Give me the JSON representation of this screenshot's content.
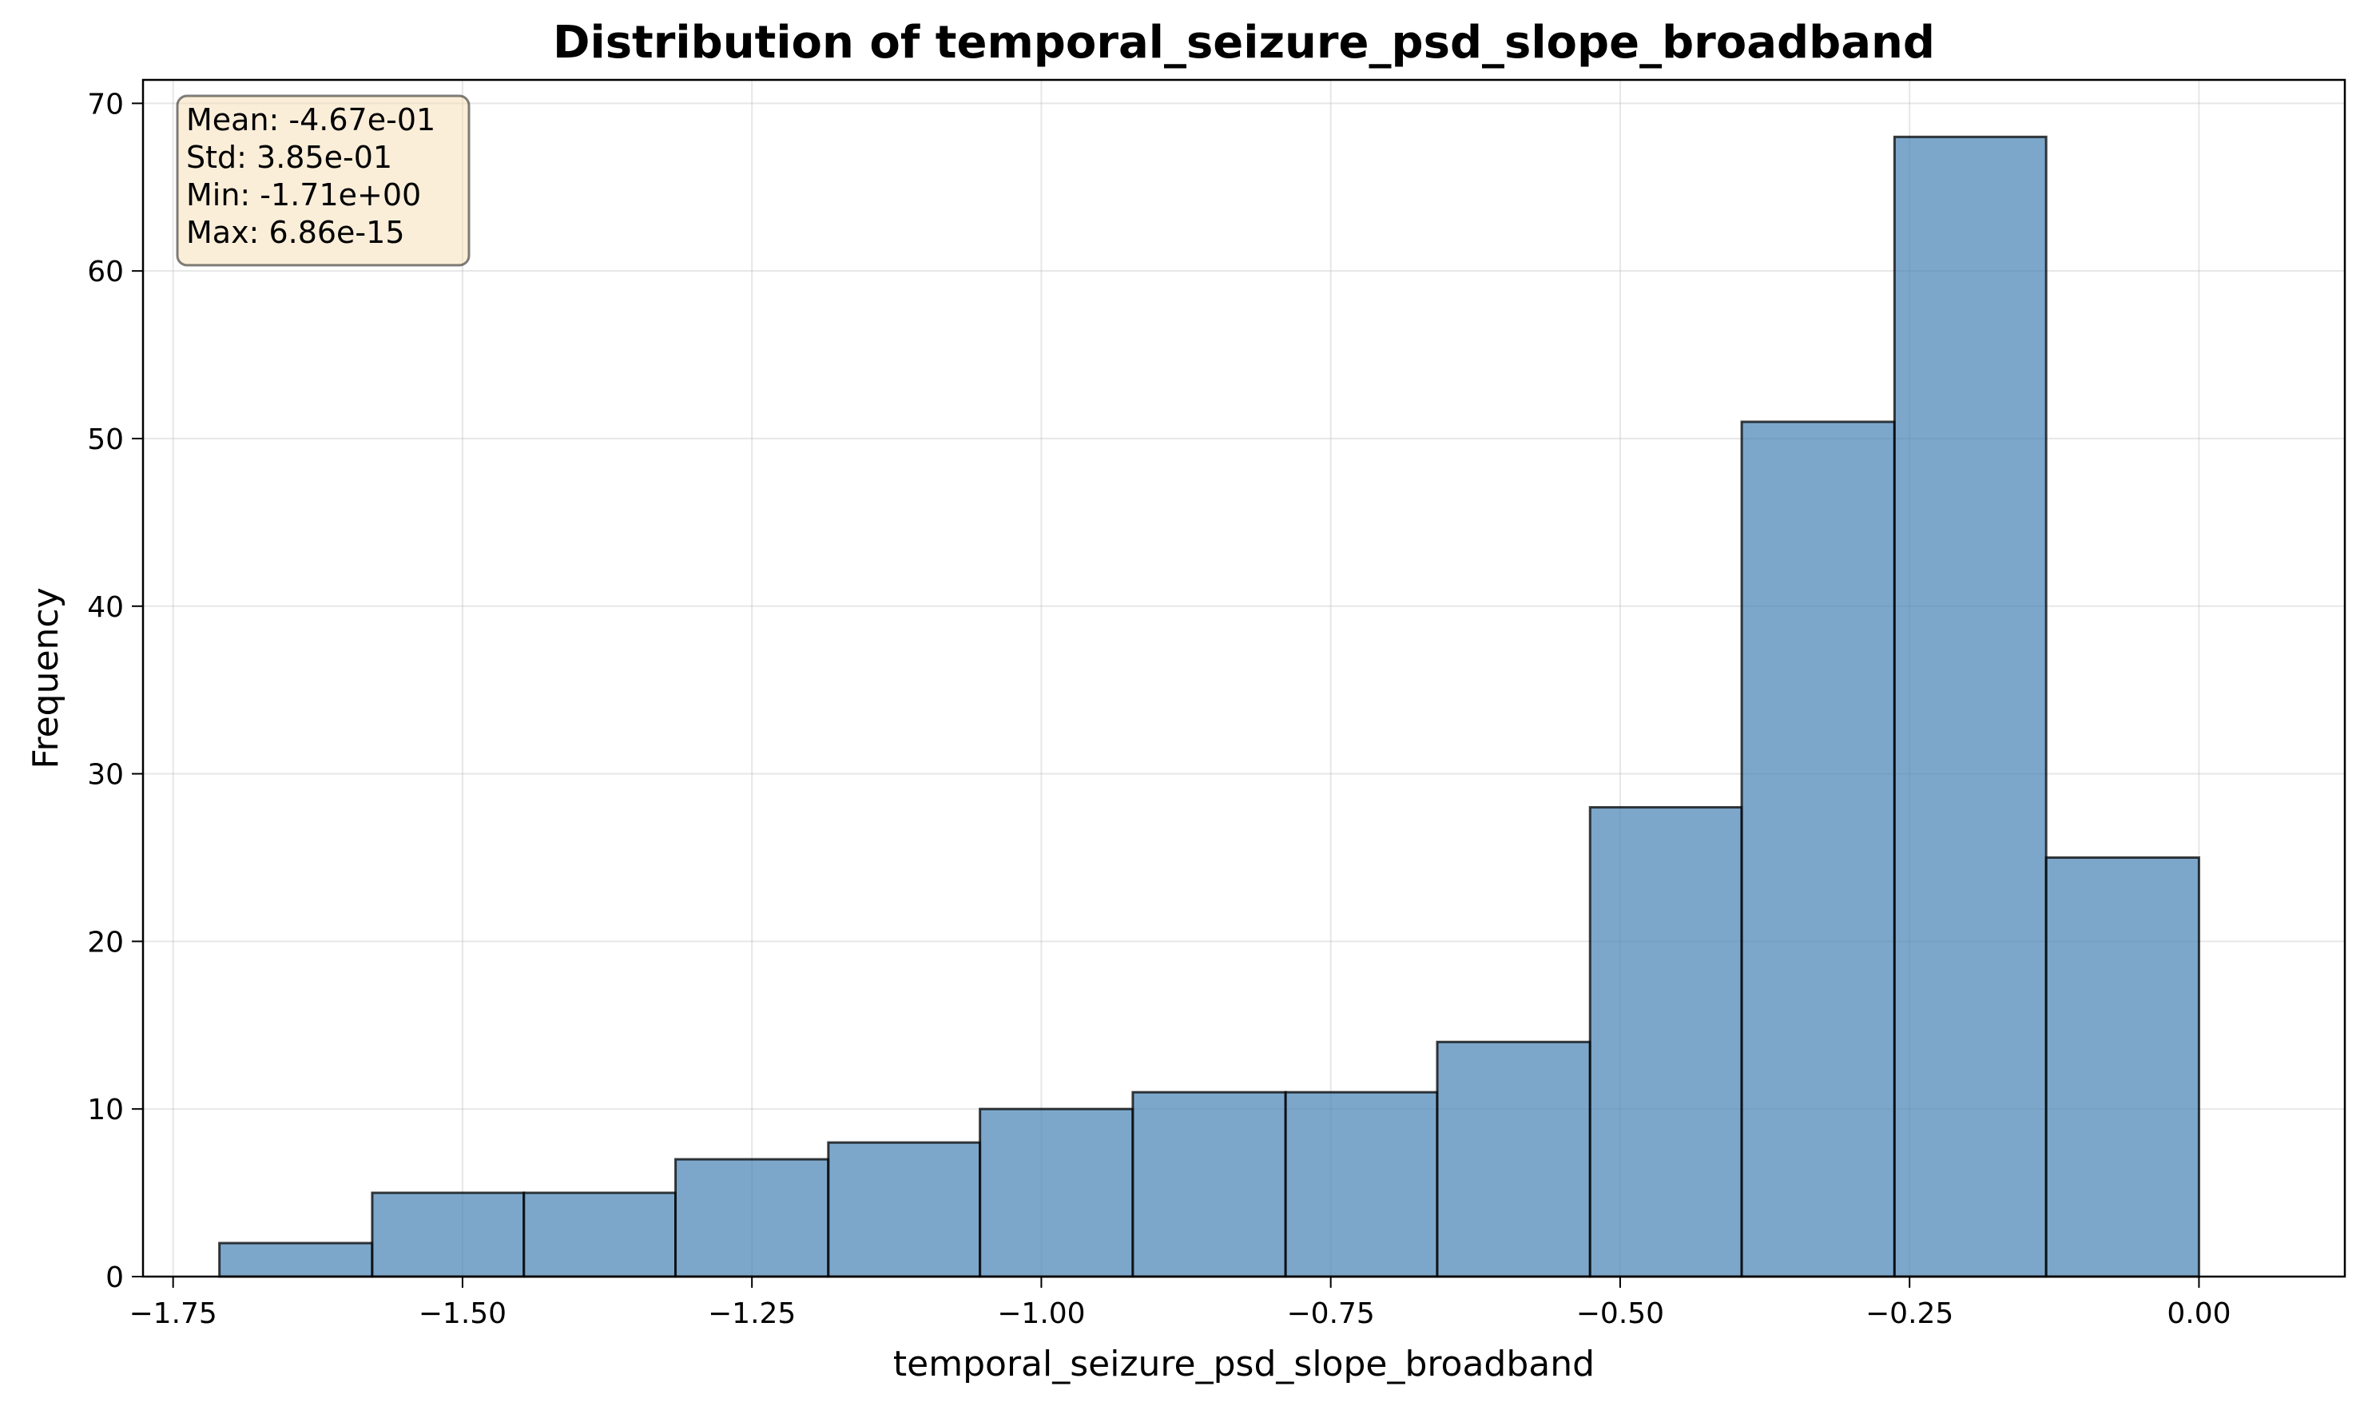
{
  "chart_data": {
    "type": "bar",
    "title": "Distribution of temporal_seizure_psd_slope_broadband",
    "xlabel": "temporal_seizure_psd_slope_broadband",
    "ylabel": "Frequency",
    "xlim": [
      -1.776,
      0.126
    ],
    "ylim": [
      0,
      71.4
    ],
    "grid": true,
    "bin_edges": [
      -1.71,
      -1.578,
      -1.447,
      -1.316,
      -1.184,
      -1.053,
      -0.921,
      -0.789,
      -0.658,
      -0.526,
      -0.395,
      -0.263,
      -0.132,
      0.0
    ],
    "values": [
      2,
      5,
      5,
      7,
      8,
      10,
      11,
      11,
      14,
      28,
      51,
      68,
      25
    ],
    "bar_color": "#4682b4",
    "x_ticks": [
      -1.75,
      -1.5,
      -1.25,
      -1.0,
      -0.75,
      -0.5,
      -0.25,
      0.0
    ],
    "x_tick_labels": [
      "−1.75",
      "−1.50",
      "−1.25",
      "−1.00",
      "−0.75",
      "−0.50",
      "−0.25",
      "0.00"
    ],
    "y_ticks": [
      0,
      10,
      20,
      30,
      40,
      50,
      60,
      70
    ],
    "y_tick_labels": [
      "0",
      "10",
      "20",
      "30",
      "40",
      "50",
      "60",
      "70"
    ],
    "stats_box": {
      "lines": [
        "Mean: -4.67e-01",
        "Std: 3.85e-01",
        "Min: -1.71e+00",
        "Max: 6.86e-15"
      ],
      "placement": "top-left",
      "box_color": "#f5deb3"
    }
  }
}
